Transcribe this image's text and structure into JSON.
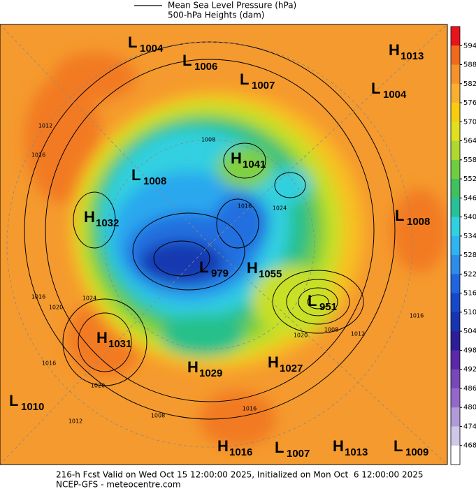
{
  "legend": {
    "mslp": "Mean Sea Level Pressure (hPa)",
    "heights": "500-hPa Heights (dam)"
  },
  "centers": [
    {
      "type": "L",
      "value": "1004"
    },
    {
      "type": "L",
      "value": "1006"
    },
    {
      "type": "L",
      "value": "1007"
    },
    {
      "type": "H",
      "value": "1013"
    },
    {
      "type": "L",
      "value": "1004"
    },
    {
      "type": "H",
      "value": "1041"
    },
    {
      "type": "L",
      "value": "1008"
    },
    {
      "type": "H",
      "value": "1032"
    },
    {
      "type": "L",
      "value": "1008"
    },
    {
      "type": "L",
      "value": "979"
    },
    {
      "type": "H",
      "value": "1055"
    },
    {
      "type": "L",
      "value": "951"
    },
    {
      "type": "H",
      "value": "1031"
    },
    {
      "type": "H",
      "value": "1029"
    },
    {
      "type": "H",
      "value": "1027"
    },
    {
      "type": "L",
      "value": "1010"
    },
    {
      "type": "H",
      "value": "1016"
    },
    {
      "type": "L",
      "value": "1007"
    },
    {
      "type": "H",
      "value": "1013"
    },
    {
      "type": "L",
      "value": "1009"
    }
  ],
  "contour_labels": [
    "1012",
    "1016",
    "1016",
    "1020",
    "1024",
    "1016",
    "1020",
    "1012",
    "1012",
    "1016",
    "1008",
    "1016",
    "1008",
    "1024",
    "1016",
    "1020",
    "1008"
  ],
  "colorbar": {
    "levels": [
      "594",
      "588",
      "582",
      "576",
      "570",
      "564",
      "558",
      "552",
      "546",
      "540",
      "534",
      "528",
      "522",
      "516",
      "510",
      "504",
      "498",
      "492",
      "486",
      "480",
      "474",
      "468"
    ],
    "colors": [
      "#e8141c",
      "#f06a1e",
      "#f5922c",
      "#f8b030",
      "#f8cc10",
      "#e0e020",
      "#b0d830",
      "#70cc40",
      "#40c060",
      "#28c098",
      "#30d0e0",
      "#30b4f0",
      "#2c8ce8",
      "#2064e0",
      "#1848c8",
      "#1834b0",
      "#2c1e98",
      "#5a28a8",
      "#7848b8",
      "#9468c8",
      "#b09ad8",
      "#d0c8e8",
      "#ffffff"
    ]
  },
  "footer": {
    "valid": "216-h Fcst Valid on Wed Oct 15 12:00:00 2025, Initialized on Mon Oct  6 12:00:00 2025",
    "source": "NCEP-GFS - meteocentre.com"
  }
}
